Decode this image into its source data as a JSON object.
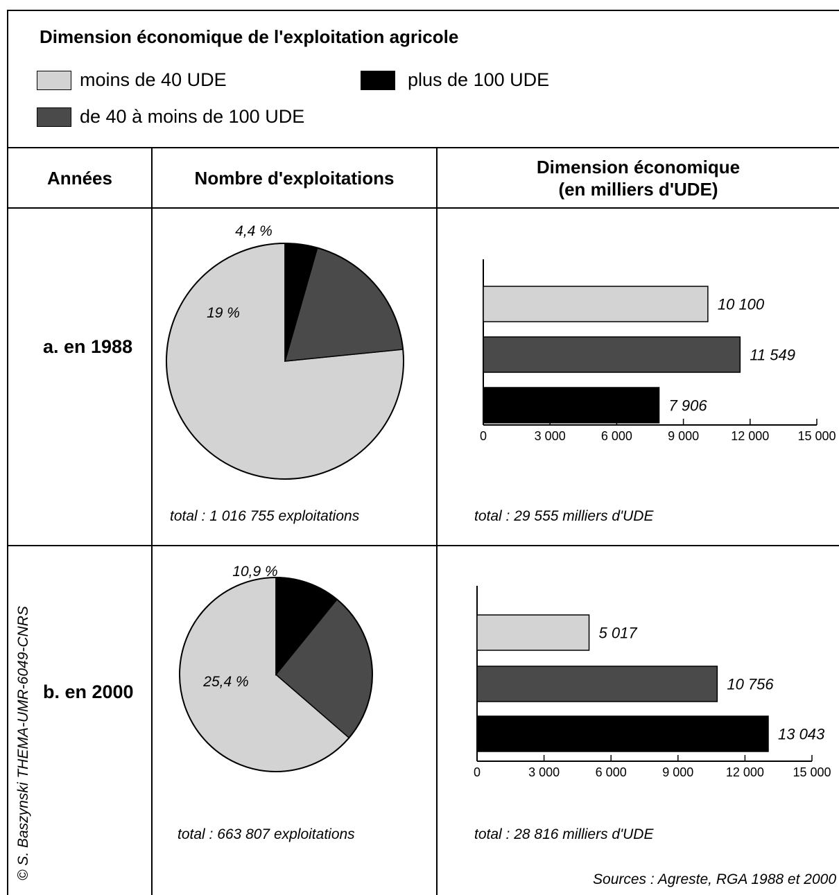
{
  "colors": {
    "light": "#d3d3d3",
    "dark": "#4a4a4a",
    "black": "#000000"
  },
  "title": "Dimension économique de l'exploitation agricole",
  "legend": [
    {
      "label": "moins de 40 UDE",
      "color": "#d3d3d3"
    },
    {
      "label": "plus de 100 UDE",
      "color": "#000000"
    },
    {
      "label": "de 40 à moins de 100 UDE",
      "color": "#4a4a4a"
    }
  ],
  "headers": {
    "years": "Années",
    "count": "Nombre d'exploitations",
    "dimension_line1": "Dimension économique",
    "dimension_line2": "(en milliers d'UDE)"
  },
  "rows": [
    {
      "year": "a. en 1988",
      "total_count": "total : 1 016 755 exploitations",
      "total_dim": "total : 29 555 milliers d'UDE"
    },
    {
      "year": "b. en 2000",
      "total_count": "total : 663 807 exploitations",
      "total_dim": "total : 28 816 milliers d'UDE"
    }
  ],
  "credit": "© S. Baszynski THEMA-UMR-6049-CNRS",
  "sources": "Sources : Agreste, RGA 1988 et 2000",
  "chart_data": [
    {
      "type": "pie",
      "year": "1988",
      "slices": [
        {
          "category": "moins de 40 UDE",
          "value": 76.6,
          "label": "76,6 %"
        },
        {
          "category": "de 40 à moins de 100 UDE",
          "value": 19,
          "label": "19 %"
        },
        {
          "category": "plus de 100 UDE",
          "value": 4.4,
          "label": "4,4 %"
        }
      ]
    },
    {
      "type": "bar",
      "year": "1988",
      "orientation": "horizontal",
      "categories": [
        "moins de 40 UDE",
        "de 40 à moins de 100 UDE",
        "plus de 100 UDE"
      ],
      "values": [
        10100,
        11549,
        7906
      ],
      "value_labels": [
        "10 100",
        "11 549",
        "7 906"
      ],
      "xlim": [
        0,
        15000
      ],
      "ticks": [
        0,
        3000,
        6000,
        9000,
        12000,
        15000
      ],
      "tick_labels": [
        "0",
        "3 000",
        "6 000",
        "9 000",
        "12 000",
        "15 000"
      ]
    },
    {
      "type": "pie",
      "year": "2000",
      "slices": [
        {
          "category": "moins de 40 UDE",
          "value": 63.7,
          "label": "63,7 %"
        },
        {
          "category": "de 40 à moins de 100 UDE",
          "value": 25.4,
          "label": "25,4 %"
        },
        {
          "category": "plus de 100 UDE",
          "value": 10.9,
          "label": "10,9 %"
        }
      ]
    },
    {
      "type": "bar",
      "year": "2000",
      "orientation": "horizontal",
      "categories": [
        "moins de 40 UDE",
        "de 40 à moins de 100 UDE",
        "plus de 100 UDE"
      ],
      "values": [
        5017,
        10756,
        13043
      ],
      "value_labels": [
        "5 017",
        "10 756",
        "13 043"
      ],
      "xlim": [
        0,
        15000
      ],
      "ticks": [
        0,
        3000,
        6000,
        9000,
        12000,
        15000
      ],
      "tick_labels": [
        "0",
        "3 000",
        "6 000",
        "9 000",
        "12 000",
        "15 000"
      ]
    }
  ]
}
